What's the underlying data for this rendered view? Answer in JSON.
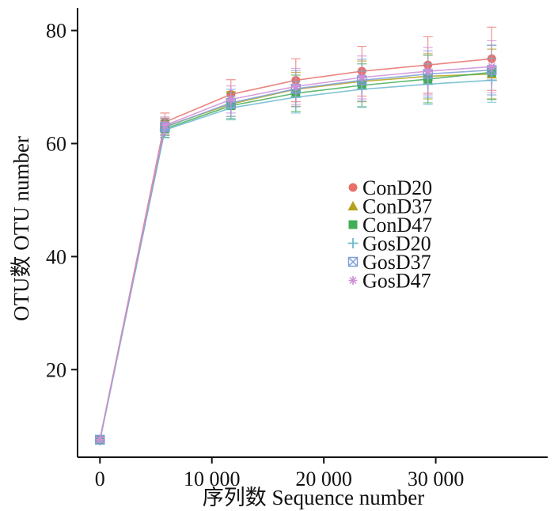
{
  "chart_data": {
    "type": "line",
    "title": "",
    "xlabel": "序列数  Sequence number",
    "ylabel": "OTU数  OTU number",
    "xlim": [
      -2000,
      40000
    ],
    "ylim": [
      4.5,
      84
    ],
    "xticks": [
      0,
      10000,
      20000,
      30000
    ],
    "xtick_labels": [
      "0",
      "10 000",
      "20 000",
      "30 000"
    ],
    "yticks": [
      20,
      40,
      60,
      80
    ],
    "ytick_labels": [
      "20",
      "40",
      "60",
      "80"
    ],
    "grid": false,
    "legend_position": "center-right",
    "x": [
      0,
      5800,
      11700,
      17500,
      23400,
      29300,
      35000
    ],
    "series": [
      {
        "name": "ConD20",
        "color": "#e8706a",
        "marker": "circle",
        "values": [
          7.6,
          63.8,
          68.7,
          71.2,
          72.8,
          73.9,
          75.0
        ],
        "errors": [
          0.4,
          1.6,
          2.6,
          3.8,
          4.4,
          5.0,
          5.6
        ]
      },
      {
        "name": "ConD37",
        "color": "#b5a21a",
        "marker": "triangle",
        "values": [
          7.6,
          63.0,
          67.0,
          69.6,
          71.0,
          71.9,
          72.3
        ],
        "errors": [
          0.4,
          1.5,
          2.2,
          3.0,
          3.6,
          4.0,
          4.4
        ]
      },
      {
        "name": "ConD47",
        "color": "#3fae55",
        "marker": "square",
        "values": [
          7.5,
          62.6,
          66.7,
          68.9,
          70.3,
          71.4,
          72.6
        ],
        "errors": [
          0.4,
          1.5,
          2.3,
          3.2,
          3.8,
          4.2,
          4.8
        ]
      },
      {
        "name": "GosD20",
        "color": "#6bb8cc",
        "marker": "plus",
        "values": [
          7.5,
          62.4,
          66.3,
          68.2,
          69.6,
          70.5,
          71.2
        ],
        "errors": [
          0.4,
          1.4,
          2.1,
          2.8,
          3.2,
          3.6,
          3.9
        ]
      },
      {
        "name": "GosD37",
        "color": "#7d9fd6",
        "marker": "boxx",
        "values": [
          7.6,
          62.9,
          67.2,
          69.7,
          71.2,
          72.3,
          73.0
        ],
        "errors": [
          0.4,
          1.5,
          2.4,
          3.2,
          3.7,
          4.1,
          4.4
        ]
      },
      {
        "name": "GosD47",
        "color": "#cf8fd6",
        "marker": "asterisk",
        "values": [
          7.6,
          63.2,
          67.8,
          70.1,
          71.7,
          72.8,
          73.6
        ],
        "errors": [
          0.4,
          1.5,
          2.4,
          3.2,
          3.8,
          4.2,
          4.6
        ]
      }
    ]
  }
}
